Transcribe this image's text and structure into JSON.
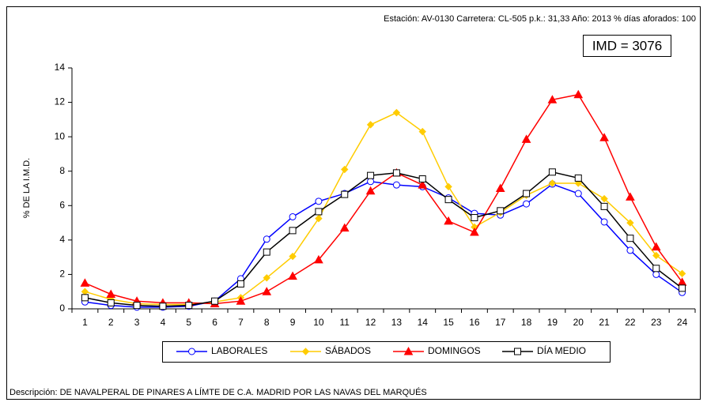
{
  "chart_data": {
    "type": "line",
    "header": "Estación: AV-0130   Carretera: CL-505   p.k.: 31,33   Año: 2013   % días aforados: 100",
    "imd": "IMD = 3076",
    "ylabel": "% DE LA I.M.D.",
    "description": "Descripción: DE NAVALPERAL DE PINARES A LÍMTE DE C.A. MADRID POR LAS NAVAS DEL MARQUÉS",
    "categories": [
      "1",
      "2",
      "3",
      "4",
      "5",
      "6",
      "7",
      "8",
      "9",
      "10",
      "11",
      "12",
      "13",
      "14",
      "15",
      "16",
      "17",
      "18",
      "19",
      "20",
      "21",
      "22",
      "23",
      "24"
    ],
    "ylim": [
      0,
      14
    ],
    "yticks": [
      0,
      2,
      4,
      6,
      8,
      10,
      12,
      14
    ],
    "grid": false,
    "series": [
      {
        "name": "LABORALES",
        "color": "#0000ff",
        "marker": "circle",
        "values": [
          0.4,
          0.2,
          0.1,
          0.1,
          0.15,
          0.45,
          1.75,
          4.05,
          5.35,
          6.25,
          6.7,
          7.4,
          7.2,
          7.1,
          6.45,
          5.55,
          5.45,
          6.1,
          7.25,
          6.7,
          5.05,
          3.4,
          2.0,
          0.95
        ]
      },
      {
        "name": "SÁBADOS",
        "color": "#ffcc00",
        "marker": "diamond",
        "values": [
          1.0,
          0.55,
          0.3,
          0.25,
          0.25,
          0.4,
          0.65,
          1.8,
          3.05,
          5.25,
          8.1,
          10.7,
          11.4,
          10.3,
          7.1,
          4.75,
          5.6,
          6.6,
          7.3,
          7.3,
          6.4,
          5.0,
          3.1,
          2.05
        ]
      },
      {
        "name": "DOMINGOS",
        "color": "#ff0000",
        "marker": "triangle",
        "values": [
          1.5,
          0.85,
          0.45,
          0.35,
          0.35,
          0.3,
          0.45,
          1.0,
          1.9,
          2.85,
          4.7,
          6.85,
          7.9,
          7.2,
          5.1,
          4.45,
          7.0,
          9.85,
          12.15,
          12.45,
          9.95,
          6.5,
          3.6,
          1.55
        ]
      },
      {
        "name": "DÍA MEDIO",
        "color": "#000000",
        "marker": "square",
        "values": [
          0.65,
          0.35,
          0.2,
          0.15,
          0.2,
          0.45,
          1.45,
          3.3,
          4.55,
          5.65,
          6.65,
          7.75,
          7.9,
          7.55,
          6.35,
          5.3,
          5.7,
          6.7,
          7.95,
          7.6,
          5.95,
          4.1,
          2.35,
          1.2
        ]
      }
    ]
  }
}
